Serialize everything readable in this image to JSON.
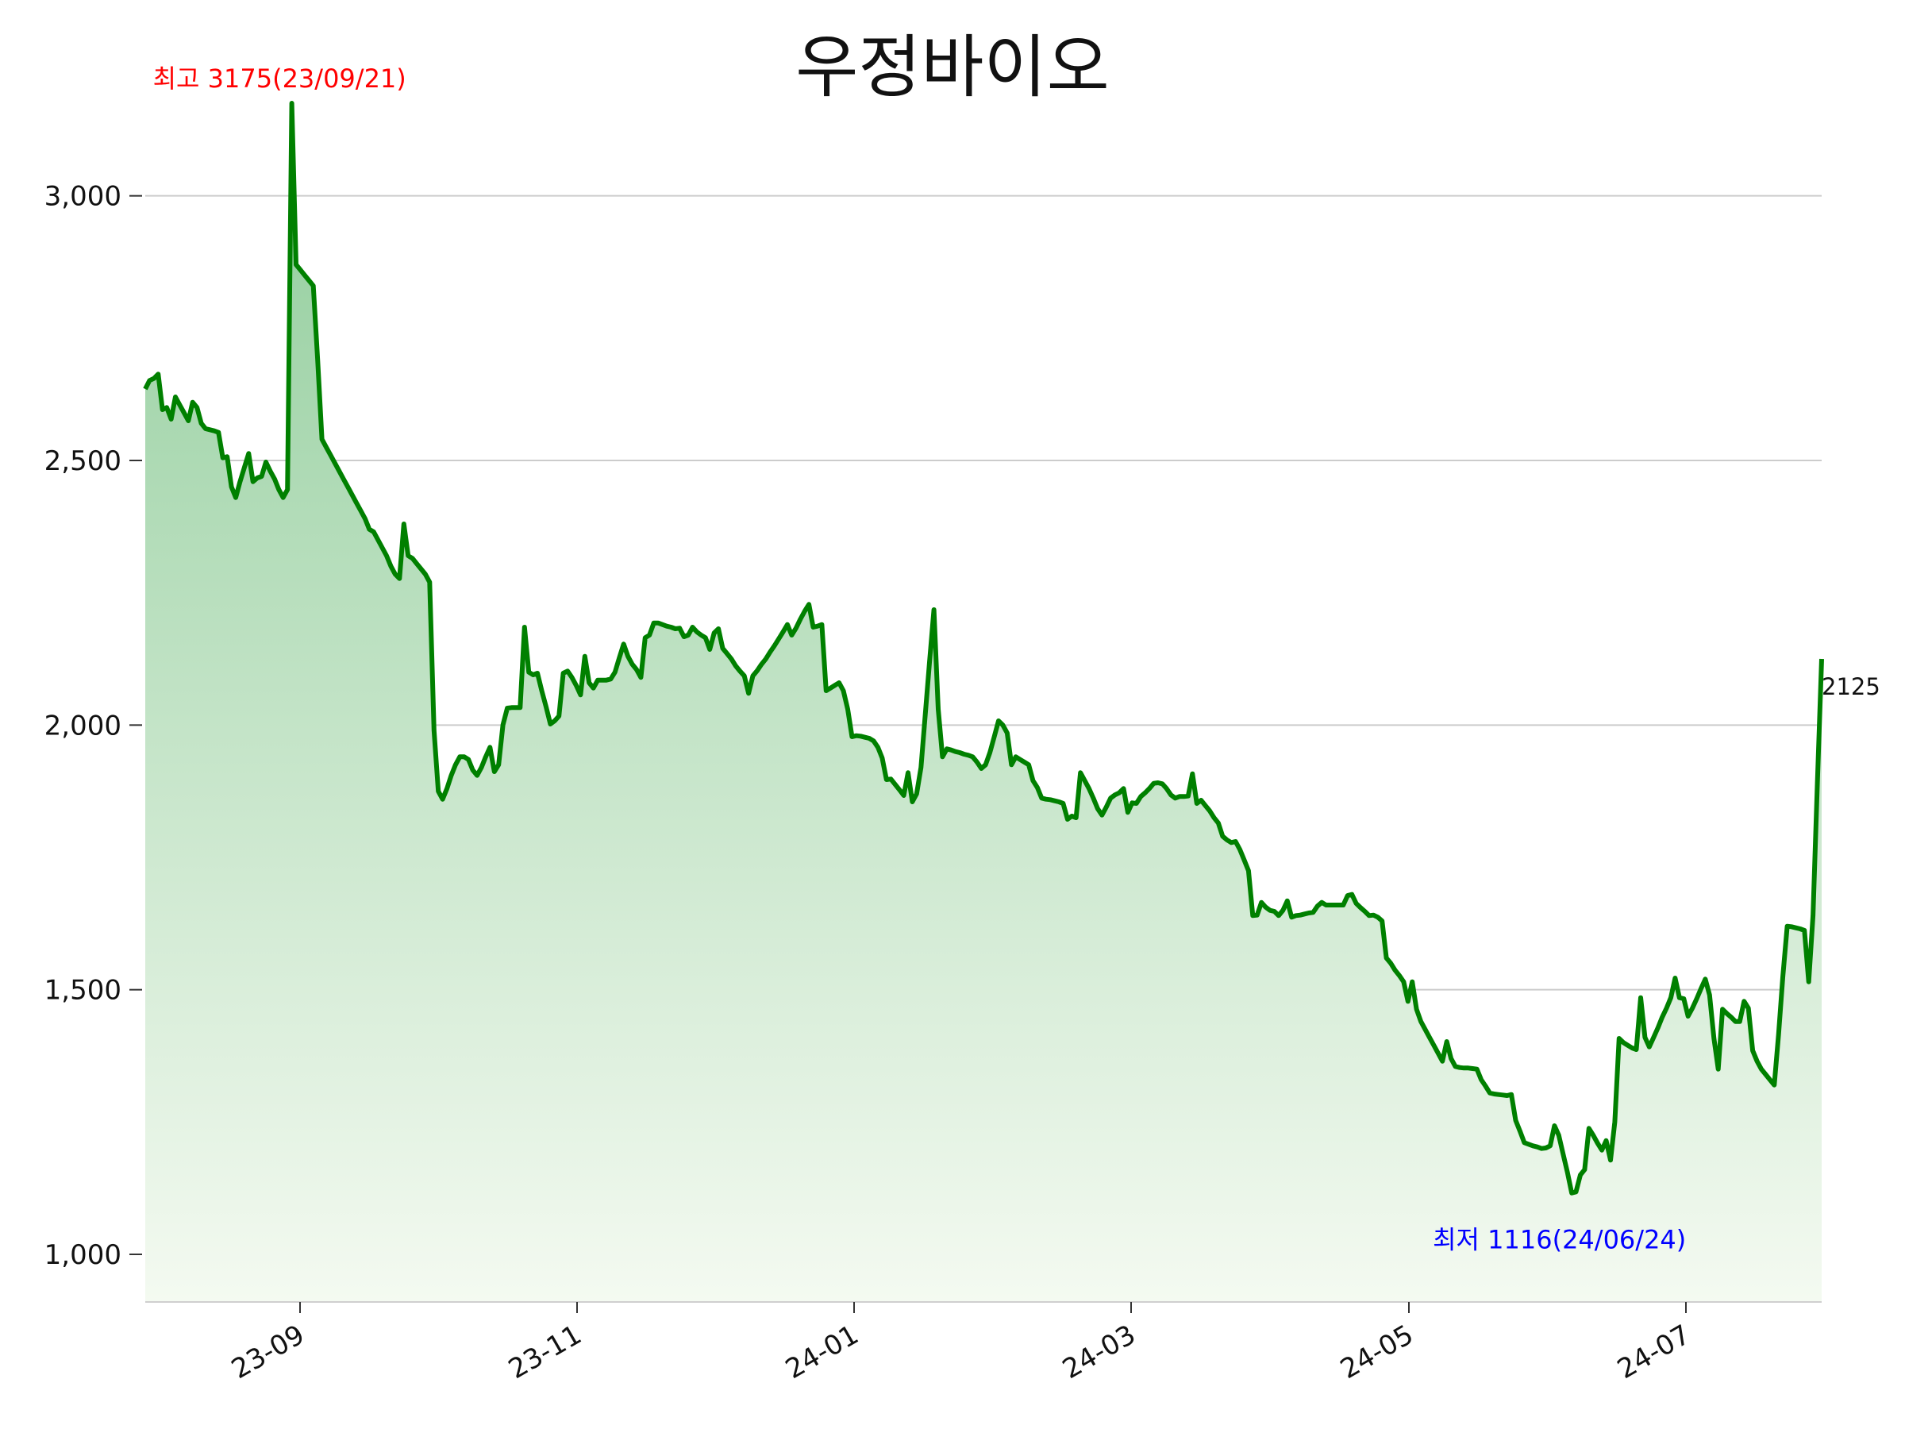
{
  "chart_data": {
    "type": "area",
    "title": "우정바이오",
    "xlabel": "",
    "ylabel": "",
    "ylim": [
      910,
      3250
    ],
    "y_ticks": [
      1000,
      1500,
      2000,
      2500,
      3000
    ],
    "y_tick_labels": [
      "1,000",
      "1,500",
      "2,000",
      "2,500",
      "3,000"
    ],
    "x_tick_labels": [
      "23-09",
      "23-11",
      "24-01",
      "24-03",
      "24-05",
      "24-07"
    ],
    "grid": true,
    "line_color": "#008000",
    "fill_color_top": "#8fcc9a",
    "fill_color_bottom": "#f4faf1",
    "annotations": {
      "high_label": "최고 3175(23/09/21)",
      "high_color": "#ff0000",
      "low_label": "최저 1116(24/06/24)",
      "low_color": "#0000ff",
      "last_label": "2125"
    },
    "series": [
      {
        "values": [
          2635,
          2651,
          2655,
          2663,
          2596,
          2600,
          2578,
          2620,
          2605,
          2590,
          2575,
          2610,
          2600,
          2570,
          2560,
          2558,
          2556,
          2553,
          2505,
          2507,
          2450,
          2430,
          2460,
          2487,
          2513,
          2460,
          2467,
          2470,
          2497,
          2480,
          2465,
          2445,
          2430,
          2445,
          3175,
          2870,
          2860,
          2850,
          2840,
          2830,
          2690,
          2540,
          2525,
          2510,
          2495,
          2480,
          2465,
          2450,
          2435,
          2420,
          2405,
          2390,
          2370,
          2365,
          2350,
          2335,
          2320,
          2300,
          2285,
          2277,
          2380,
          2320,
          2315,
          2305,
          2295,
          2285,
          2270,
          1990,
          1875,
          1860,
          1880,
          1905,
          1925,
          1940,
          1940,
          1935,
          1915,
          1905,
          1920,
          1940,
          1958,
          1912,
          1925,
          2000,
          2032,
          2033,
          2033,
          2033,
          2185,
          2100,
          2095,
          2098,
          2065,
          2035,
          2002,
          2008,
          2017,
          2098,
          2102,
          2090,
          2075,
          2057,
          2130,
          2080,
          2070,
          2085,
          2085,
          2085,
          2087,
          2100,
          2127,
          2153,
          2130,
          2115,
          2105,
          2090,
          2165,
          2170,
          2193,
          2193,
          2190,
          2187,
          2185,
          2182,
          2183,
          2167,
          2170,
          2185,
          2176,
          2170,
          2165,
          2143,
          2174,
          2182,
          2145,
          2135,
          2125,
          2112,
          2102,
          2093,
          2060,
          2093,
          2103,
          2115,
          2125,
          2138,
          2150,
          2163,
          2176,
          2190,
          2170,
          2183,
          2200,
          2215,
          2228,
          2185,
          2187,
          2190,
          2065,
          2070,
          2075,
          2080,
          2065,
          2030,
          1978,
          1980,
          1979,
          1977,
          1975,
          1970,
          1958,
          1938,
          1897,
          1898,
          1888,
          1878,
          1867,
          1910,
          1855,
          1870,
          1920,
          2020,
          2120,
          2218,
          2030,
          1940,
          1955,
          1953,
          1950,
          1948,
          1945,
          1943,
          1940,
          1930,
          1918,
          1925,
          1948,
          1978,
          2008,
          2000,
          1985,
          1925,
          1940,
          1935,
          1930,
          1925,
          1895,
          1882,
          1862,
          1860,
          1859,
          1857,
          1855,
          1852,
          1822,
          1828,
          1825,
          1910,
          1895,
          1880,
          1862,
          1842,
          1830,
          1845,
          1862,
          1868,
          1872,
          1880,
          1835,
          1853,
          1852,
          1865,
          1872,
          1880,
          1890,
          1891,
          1889,
          1880,
          1868,
          1862,
          1865,
          1865,
          1866,
          1908,
          1852,
          1858,
          1848,
          1838,
          1825,
          1815,
          1790,
          1783,
          1778,
          1780,
          1765,
          1745,
          1725,
          1640,
          1641,
          1665,
          1656,
          1650,
          1648,
          1640,
          1650,
          1668,
          1637,
          1640,
          1641,
          1643,
          1645,
          1646,
          1658,
          1665,
          1660,
          1660,
          1660,
          1660,
          1660,
          1678,
          1680,
          1663,
          1655,
          1648,
          1640,
          1641,
          1637,
          1630,
          1560,
          1550,
          1537,
          1527,
          1515,
          1478,
          1515,
          1463,
          1440,
          1425,
          1410,
          1395,
          1380,
          1365,
          1402,
          1370,
          1355,
          1353,
          1352,
          1352,
          1351,
          1350,
          1330,
          1318,
          1305,
          1303,
          1302,
          1301,
          1300,
          1302,
          1253,
          1233,
          1211,
          1208,
          1205,
          1203,
          1200,
          1201,
          1205,
          1243,
          1225,
          1190,
          1155,
          1116,
          1118,
          1150,
          1160,
          1238,
          1225,
          1210,
          1197,
          1215,
          1178,
          1250,
          1408,
          1400,
          1395,
          1390,
          1387,
          1485,
          1410,
          1392,
          1410,
          1428,
          1448,
          1465,
          1485,
          1522,
          1485,
          1483,
          1450,
          1465,
          1483,
          1502,
          1520,
          1490,
          1408,
          1350,
          1463,
          1455,
          1448,
          1440,
          1440,
          1478,
          1465,
          1385,
          1365,
          1350,
          1340,
          1330,
          1320,
          1415,
          1525,
          1620,
          1619,
          1617,
          1615,
          1612,
          1515,
          1640,
          1890,
          2125
        ]
      }
    ]
  }
}
